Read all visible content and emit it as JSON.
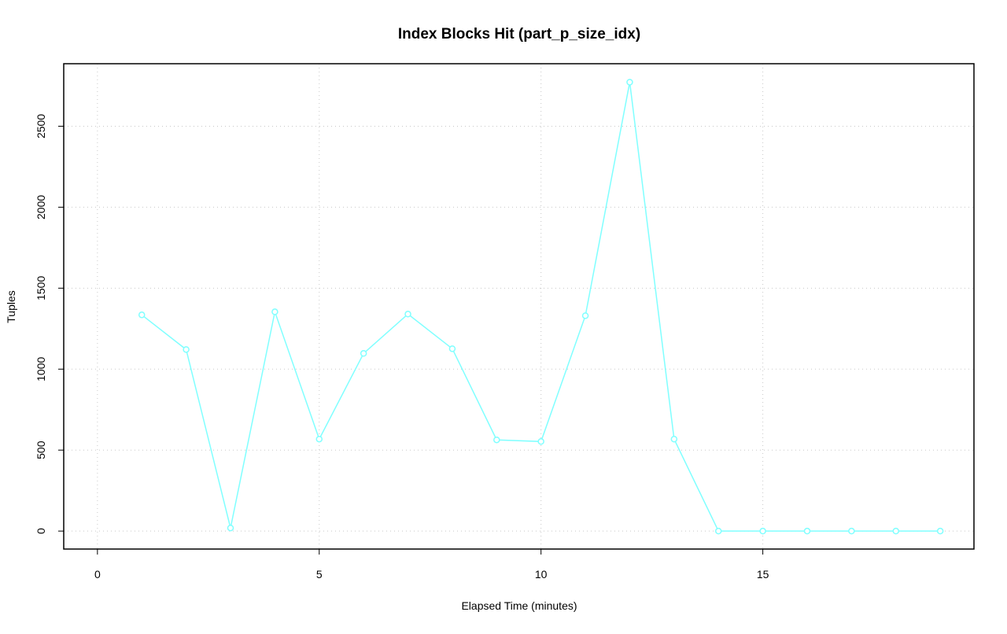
{
  "chart_data": {
    "type": "line",
    "title": "Index Blocks Hit (part_p_size_idx)",
    "x_label": "Elapsed Time (minutes)",
    "y_label": "Tuples",
    "x": [
      1,
      2,
      3,
      4,
      5,
      6,
      7,
      8,
      9,
      10,
      11,
      12,
      13,
      14,
      15,
      16,
      17,
      18,
      19
    ],
    "series": [
      {
        "name": "part_p_size_idx",
        "color": "#80ffff",
        "values": [
          1335,
          1121,
          19,
          1354,
          568,
          1097,
          1340,
          1126,
          563,
          553,
          1330,
          2772,
          568,
          0,
          0,
          0,
          0,
          0,
          0
        ]
      }
    ],
    "xlim": [
      -0.76,
      19.76
    ],
    "ylim": [
      -111,
      2886
    ],
    "xticks": [
      0,
      5,
      10,
      15
    ],
    "yticks": [
      0,
      500,
      1000,
      1500,
      2000,
      2500
    ],
    "grid": true
  }
}
